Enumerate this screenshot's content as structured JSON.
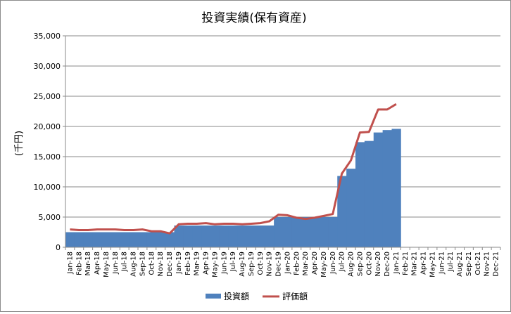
{
  "chart_data": {
    "type": "bar",
    "title": "投資実績(保有資産)",
    "ylabel": "(千円)",
    "xlabel": "",
    "ylim": [
      0,
      35000
    ],
    "yticks": [
      0,
      5000,
      10000,
      15000,
      20000,
      25000,
      30000,
      35000
    ],
    "ytick_labels": [
      "0",
      "5,000",
      "10,000",
      "15,000",
      "20,000",
      "25,000",
      "30,000",
      "35,000"
    ],
    "grid": true,
    "legend_position": "bottom",
    "categories": [
      "Jan-18",
      "Feb-18",
      "Mar-18",
      "Apr-18",
      "May-18",
      "Jun-18",
      "Jul-18",
      "Aug-18",
      "Sep-18",
      "Oct-18",
      "Nov-18",
      "Dec-18",
      "Jan-19",
      "Feb-19",
      "Mar-19",
      "Apr-19",
      "May-19",
      "Jun-19",
      "Jul-19",
      "Aug-19",
      "Sep-19",
      "Oct-19",
      "Nov-19",
      "Dec-19",
      "Jan-20",
      "Feb-20",
      "Mar-20",
      "Apr-20",
      "May-20",
      "Jun-20",
      "Jul-20",
      "Aug-20",
      "Sep-20",
      "Oct-20",
      "Nov-20",
      "Dec-20",
      "Jan-21",
      "Feb-21",
      "Mar-21",
      "Apr-21",
      "May-21",
      "Jun-21",
      "Jul-21",
      "Aug-21",
      "Sep-21",
      "Oct-21",
      "Nov-21",
      "Dec-21"
    ],
    "series": [
      {
        "name": "投資額",
        "type": "bar",
        "color": "#4f81bd",
        "values": [
          2500,
          2500,
          2500,
          2500,
          2500,
          2500,
          2500,
          2500,
          2500,
          2500,
          2500,
          2500,
          3600,
          3600,
          3600,
          3600,
          3600,
          3600,
          3600,
          3600,
          3600,
          3600,
          3600,
          5000,
          5000,
          5000,
          5000,
          5000,
          5000,
          5000,
          11800,
          13000,
          17400,
          17600,
          19000,
          19400,
          19600,
          null,
          null,
          null,
          null,
          null,
          null,
          null,
          null,
          null,
          null,
          null
        ]
      },
      {
        "name": "評価額",
        "type": "line",
        "color": "#c0504d",
        "values": [
          2950,
          2850,
          2850,
          2950,
          2950,
          2950,
          2850,
          2850,
          2950,
          2650,
          2650,
          2300,
          3800,
          3900,
          3900,
          4000,
          3800,
          3900,
          3900,
          3800,
          3900,
          4000,
          4300,
          5400,
          5300,
          4900,
          4700,
          4900,
          5200,
          5500,
          12200,
          14400,
          19000,
          19100,
          22800,
          22800,
          23700,
          null,
          null,
          null,
          null,
          null,
          null,
          null,
          null,
          null,
          null,
          null
        ]
      }
    ]
  }
}
